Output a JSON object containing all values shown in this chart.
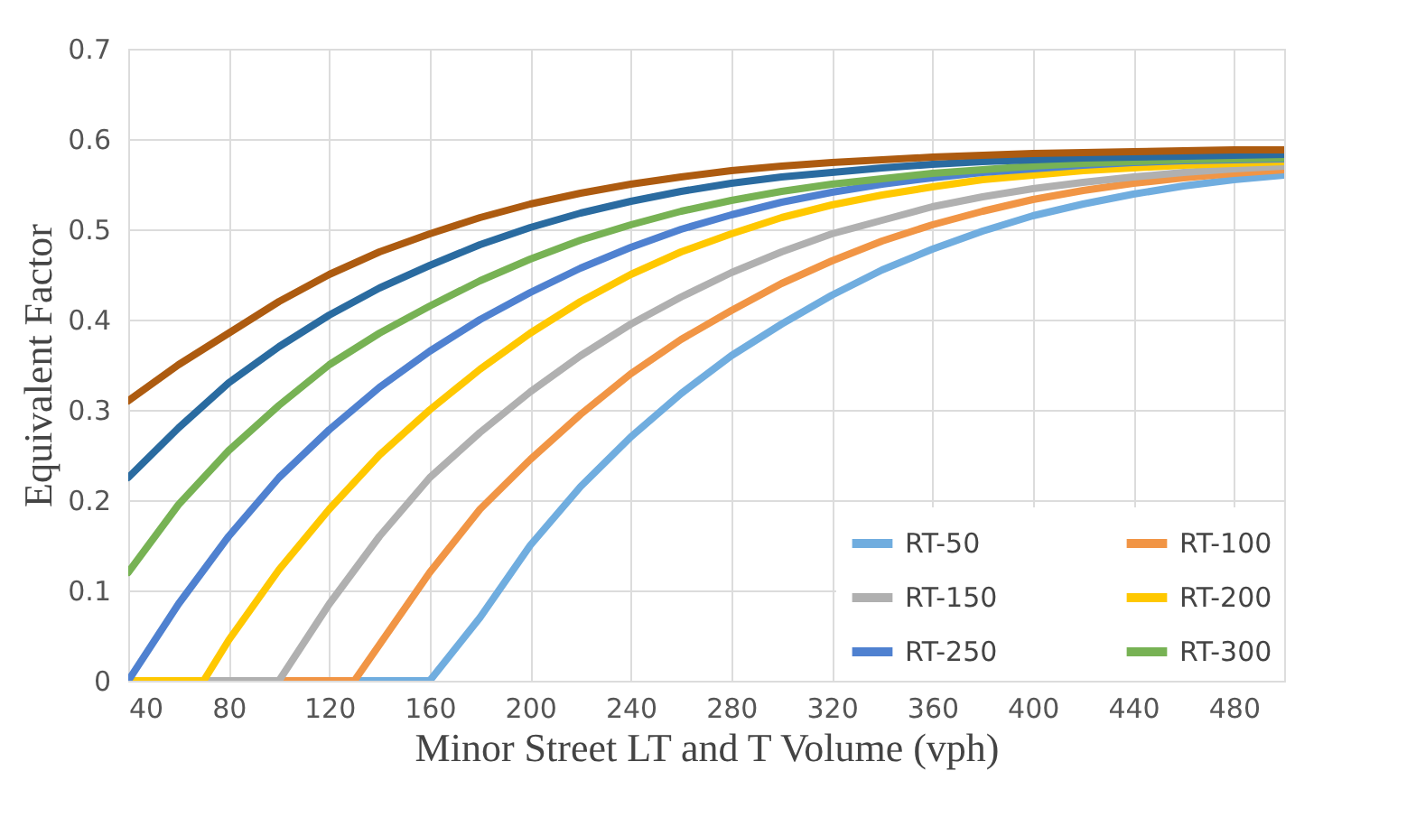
{
  "chart_data": {
    "type": "line",
    "xlabel": "Minor Street LT and T Volume (vph)",
    "ylabel": "Equivalent Factor",
    "xlim": [
      40,
      500
    ],
    "xticks": [
      40,
      80,
      120,
      160,
      200,
      240,
      280,
      320,
      360,
      400,
      440,
      480
    ],
    "ylim": [
      0,
      0.7
    ],
    "yticks": [
      0,
      0.1,
      0.2,
      0.3,
      0.4,
      0.5,
      0.6,
      0.7
    ],
    "grid": true,
    "legend": "bottom right",
    "marker": "none",
    "line_style": "solid",
    "series": [
      {
        "name": "RT-50",
        "color": "#70addf",
        "x": [
          40,
          60,
          80,
          100,
          120,
          140,
          160,
          180,
          200,
          220,
          240,
          260,
          280,
          300,
          320,
          340,
          360,
          380,
          400,
          420,
          440,
          460,
          480,
          500
        ],
        "values": [
          0,
          0,
          0,
          0,
          0,
          0,
          0,
          0.07,
          0.15,
          0.215,
          0.27,
          0.318,
          0.36,
          0.395,
          0.427,
          0.455,
          0.478,
          0.498,
          0.515,
          0.528,
          0.539,
          0.548,
          0.555,
          0.56
        ]
      },
      {
        "name": "RT-100",
        "color": "#f19545",
        "x": [
          40,
          60,
          80,
          100,
          120,
          130,
          140,
          160,
          180,
          200,
          220,
          240,
          260,
          280,
          300,
          320,
          340,
          360,
          380,
          400,
          420,
          440,
          460,
          480,
          500
        ],
        "values": [
          0,
          0,
          0,
          0,
          0,
          0,
          0.04,
          0.12,
          0.19,
          0.245,
          0.295,
          0.34,
          0.378,
          0.41,
          0.44,
          0.465,
          0.487,
          0.505,
          0.52,
          0.533,
          0.543,
          0.551,
          0.557,
          0.562,
          0.566
        ]
      },
      {
        "name": "RT-150",
        "color": "#b0b0b0",
        "x": [
          40,
          60,
          80,
          100,
          120,
          140,
          160,
          180,
          200,
          220,
          240,
          260,
          280,
          300,
          320,
          340,
          360,
          380,
          400,
          420,
          440,
          460,
          480,
          500
        ],
        "values": [
          0,
          0,
          0,
          0,
          0.085,
          0.16,
          0.225,
          0.275,
          0.32,
          0.36,
          0.395,
          0.425,
          0.452,
          0.475,
          0.495,
          0.51,
          0.525,
          0.536,
          0.545,
          0.552,
          0.558,
          0.563,
          0.567,
          0.57
        ]
      },
      {
        "name": "RT-200",
        "color": "#ffc800",
        "x": [
          40,
          60,
          70,
          80,
          100,
          120,
          140,
          160,
          180,
          200,
          220,
          240,
          260,
          280,
          300,
          320,
          340,
          360,
          380,
          400,
          420,
          440,
          460,
          480,
          500
        ],
        "values": [
          0,
          0,
          0,
          0.045,
          0.123,
          0.19,
          0.25,
          0.3,
          0.345,
          0.385,
          0.42,
          0.45,
          0.475,
          0.495,
          0.513,
          0.527,
          0.538,
          0.547,
          0.555,
          0.56,
          0.565,
          0.568,
          0.571,
          0.573,
          0.575
        ]
      },
      {
        "name": "RT-250",
        "color": "#4f81d0",
        "x": [
          40,
          60,
          80,
          100,
          120,
          140,
          160,
          180,
          200,
          220,
          240,
          260,
          280,
          300,
          320,
          340,
          360,
          380,
          400,
          420,
          440,
          460,
          480,
          500
        ],
        "values": [
          0,
          0.085,
          0.16,
          0.225,
          0.278,
          0.325,
          0.365,
          0.4,
          0.43,
          0.457,
          0.48,
          0.5,
          0.516,
          0.53,
          0.541,
          0.55,
          0.557,
          0.563,
          0.567,
          0.571,
          0.574,
          0.576,
          0.577,
          0.578
        ]
      },
      {
        "name": "RT-300",
        "color": "#77b254",
        "x": [
          40,
          60,
          80,
          100,
          120,
          140,
          160,
          180,
          200,
          220,
          240,
          260,
          280,
          300,
          320,
          340,
          360,
          380,
          400,
          420,
          440,
          460,
          480,
          500
        ],
        "values": [
          0.12,
          0.195,
          0.255,
          0.305,
          0.35,
          0.385,
          0.415,
          0.443,
          0.467,
          0.488,
          0.505,
          0.52,
          0.532,
          0.542,
          0.55,
          0.556,
          0.562,
          0.566,
          0.57,
          0.573,
          0.575,
          0.577,
          0.578,
          0.579
        ]
      },
      {
        "color": "#2a6ba0",
        "x": [
          40,
          60,
          80,
          100,
          120,
          140,
          160,
          180,
          200,
          220,
          240,
          260,
          280,
          300,
          320,
          340,
          360,
          380,
          400,
          420,
          440,
          460,
          480,
          500
        ],
        "values": [
          0.225,
          0.28,
          0.33,
          0.37,
          0.405,
          0.435,
          0.46,
          0.483,
          0.502,
          0.518,
          0.531,
          0.542,
          0.551,
          0.558,
          0.563,
          0.568,
          0.572,
          0.575,
          0.577,
          0.579,
          0.58,
          0.581,
          0.582,
          0.583
        ]
      },
      {
        "color": "#ad5b10",
        "x": [
          40,
          60,
          80,
          100,
          120,
          140,
          160,
          180,
          200,
          220,
          240,
          260,
          280,
          300,
          320,
          340,
          360,
          380,
          400,
          420,
          440,
          460,
          480,
          500
        ],
        "values": [
          0.31,
          0.35,
          0.385,
          0.42,
          0.45,
          0.475,
          0.495,
          0.513,
          0.528,
          0.54,
          0.55,
          0.558,
          0.565,
          0.57,
          0.574,
          0.577,
          0.58,
          0.582,
          0.584,
          0.585,
          0.586,
          0.587,
          0.588,
          0.588
        ]
      }
    ]
  }
}
